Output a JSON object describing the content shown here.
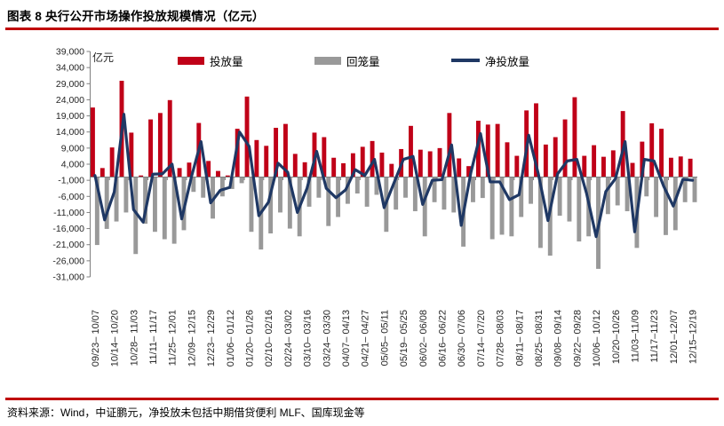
{
  "title": "图表 8 央行公开市场操作投放规模情况（亿元）",
  "source_note": "资料来源：Wind，中证鹏元，净投放未包括中期借贷便利 MLF、国库现金等",
  "colors": {
    "rule_red": "#c00000",
    "injection_red": "#c00018",
    "withdrawal_gray": "#999999",
    "net_navy": "#1f3864",
    "axis_gray": "#7f7f7f",
    "tick_text": "#262626"
  },
  "chart_data": {
    "type": "bar",
    "subtype": "clustered bars + line overlay",
    "unit_label": "亿元",
    "ylim": [
      -31000,
      39000
    ],
    "y_tick_step": 5000,
    "y_ticks": [
      39000,
      34000,
      29000,
      24000,
      19000,
      14000,
      9000,
      4000,
      -1000,
      -6000,
      -11000,
      -16000,
      -21000,
      -26000,
      -31000
    ],
    "grid": "off",
    "legend_position": "top",
    "x_label_every": 2,
    "x_labels": [
      "09/23– 10/07",
      "10/14– 10/20",
      "10/28– 11/03",
      "11/11– 11/17",
      "11/25– 12/01",
      "12/09– 12/15",
      "12/23– 12/29",
      "01/06– 01/12",
      "01/20– 01/26",
      "02/10– 02/16",
      "02/24– 03/02",
      "03/10– 03/16",
      "03/24– 03/30",
      "04/07– 04/13",
      "04/21– 04/27",
      "05/05– 05/11",
      "05/19– 05/25",
      "06/02– 06/08",
      "06/16– 06/22",
      "06/30– 07/06",
      "07/14– 07/20",
      "07/28– 08/03",
      "08/11– 08/17",
      "08/25– 08/31",
      "09/08– 09/14",
      "09/22– 09/28",
      "10/06– 10/12",
      "10/20–10/26",
      "11/03–11/09",
      "11/17–11/23",
      "12/01–12/07",
      "12/15–12/19"
    ],
    "series": [
      {
        "name": "投放量",
        "type": "bar",
        "color": "#c00018",
        "values": [
          21600,
          2800,
          9200,
          29900,
          13800,
          500,
          17900,
          19900,
          23900,
          2800,
          4500,
          16800,
          5000,
          1900,
          500,
          15000,
          25000,
          11500,
          9700,
          15300,
          16500,
          7200,
          4600,
          13800,
          12400,
          6000,
          4300,
          7400,
          9400,
          11200,
          7600,
          4100,
          8700,
          15900,
          8500,
          8000,
          9000,
          19900,
          5800,
          3400,
          17500,
          16300,
          16500,
          10800,
          6600,
          20700,
          22900,
          10100,
          12400,
          17900,
          24800,
          6600,
          9900,
          6300,
          8300,
          20500,
          4400,
          11000,
          16700,
          15000,
          6000,
          6400,
          5700
        ]
      },
      {
        "name": "回笼量",
        "type": "bar",
        "color": "#999999",
        "values": [
          -21100,
          -16100,
          -13800,
          -11000,
          -23900,
          -14500,
          -17000,
          -19300,
          -20700,
          -16500,
          -4600,
          -6400,
          -12900,
          -6000,
          -3700,
          -1900,
          -17000,
          -22500,
          -17500,
          -11000,
          -16000,
          -18400,
          -9200,
          -6400,
          -15200,
          -12400,
          -8300,
          -5100,
          -9200,
          -5500,
          -17000,
          -10100,
          -6400,
          -10600,
          -18400,
          -7800,
          -10100,
          -11000,
          -21600,
          -7800,
          -6500,
          -19300,
          -17900,
          -18400,
          -12400,
          -8300,
          -22000,
          -24400,
          -12000,
          -13800,
          -20000,
          -18400,
          -28500,
          -11500,
          -8800,
          -10600,
          -22000,
          -6000,
          -12400,
          -18000,
          -16500,
          -7800,
          -7800
        ]
      },
      {
        "name": "净投放量",
        "type": "line",
        "color": "#1f3864",
        "values": [
          500,
          -13300,
          -4600,
          19500,
          -10100,
          -14000,
          900,
          1000,
          4000,
          -13000,
          0,
          11000,
          -8000,
          -4100,
          -3200,
          14000,
          9500,
          -12000,
          -7800,
          4300,
          1500,
          -11000,
          -3500,
          8000,
          -3500,
          -6400,
          -4000,
          2300,
          500,
          5500,
          -9500,
          -2000,
          5500,
          6400,
          -8500,
          -1000,
          -800,
          10000,
          -15000,
          1400,
          13500,
          -1500,
          -1500,
          -7000,
          -5500,
          13000,
          1000,
          -13500,
          1000,
          5000,
          5500,
          -5000,
          -18500,
          -4500,
          -500,
          11000,
          -17000,
          5500,
          5000,
          -2800,
          -9000,
          -700,
          -1000
        ]
      }
    ]
  }
}
